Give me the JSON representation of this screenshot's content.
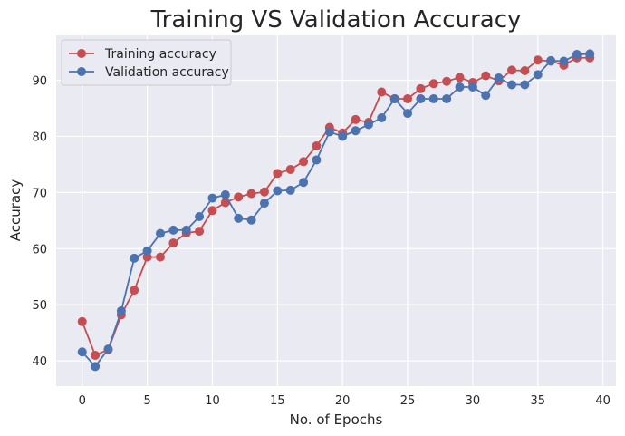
{
  "chart_data": {
    "type": "line",
    "title": "Training VS Validation Accuracy",
    "xlabel": "No. of Epochs",
    "ylabel": "Accuracy",
    "xlim": [
      -2,
      41
    ],
    "ylim": [
      35.5,
      98
    ],
    "xticks": [
      0,
      5,
      10,
      15,
      20,
      25,
      30,
      35,
      40
    ],
    "yticks": [
      40,
      50,
      60,
      70,
      80,
      90
    ],
    "grid": true,
    "legend_position": "top-left",
    "x": [
      0,
      1,
      2,
      3,
      4,
      5,
      6,
      7,
      8,
      9,
      10,
      11,
      12,
      13,
      14,
      15,
      16,
      17,
      18,
      19,
      20,
      21,
      22,
      23,
      24,
      25,
      26,
      27,
      28,
      29,
      30,
      31,
      32,
      33,
      34,
      35,
      36,
      37,
      38,
      39
    ],
    "series": [
      {
        "name": "Training accuracy",
        "color": "#c44e52",
        "values": [
          47.0,
          41.0,
          42.0,
          48.2,
          52.6,
          58.5,
          58.5,
          61.0,
          62.8,
          63.1,
          66.8,
          68.2,
          69.2,
          69.8,
          70.1,
          73.4,
          74.1,
          75.5,
          78.3,
          81.6,
          80.6,
          83.0,
          82.5,
          87.9,
          86.7,
          86.7,
          88.5,
          89.4,
          89.8,
          90.5,
          89.6,
          90.8,
          89.9,
          91.8,
          91.7,
          93.6,
          93.4,
          92.7,
          94.0,
          94.0
        ]
      },
      {
        "name": "Validation accuracy",
        "color": "#4c72b0",
        "values": [
          41.6,
          39.0,
          42.1,
          48.9,
          58.3,
          59.6,
          62.7,
          63.3,
          63.3,
          65.7,
          69.0,
          69.6,
          65.4,
          65.1,
          68.1,
          70.3,
          70.4,
          71.8,
          75.8,
          80.8,
          80.0,
          81.0,
          82.1,
          83.3,
          86.7,
          84.1,
          86.7,
          86.7,
          86.7,
          88.8,
          88.8,
          87.3,
          90.4,
          89.2,
          89.2,
          91.0,
          93.5,
          93.4,
          94.6,
          94.7
        ]
      }
    ]
  }
}
